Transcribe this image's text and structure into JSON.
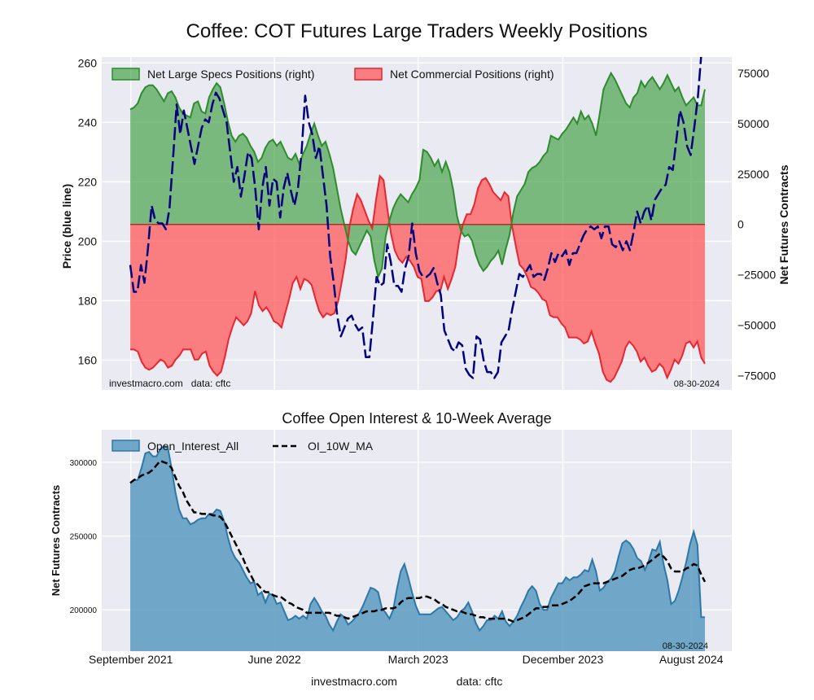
{
  "title": "Coffee: COT Futures Large Traders Weekly Positions",
  "colors": {
    "panel_bg": "#eaeaf2",
    "grid": "#ffffff",
    "specs_fill": "#3e9e3e",
    "specs_line": "#2e8b2e",
    "comm_fill": "#ff5a5a",
    "comm_line": "#e8262f",
    "price_line": "#000080",
    "oi_fill": "#5a9ac0",
    "oi_line": "#2e78a8",
    "ma_line": "#000000"
  },
  "footer": {
    "site": "investmacro.com",
    "data": "data: cftc"
  },
  "chart_data": [
    {
      "type": "area",
      "title": "Coffee: COT Futures Large Traders Weekly Positions",
      "ylabel_left": "Price (blue line)",
      "ylabel_right": "Net Futures Contracts",
      "ylim_left": [
        150,
        262
      ],
      "ylim_right": [
        -82000,
        83000
      ],
      "yticks_left": [
        "160",
        "180",
        "200",
        "220",
        "240",
        "260"
      ],
      "yticks_right": [
        "75000",
        "50000",
        "25000",
        "0",
        "−25000",
        "−50000",
        "−75000"
      ],
      "ytick_values_right": [
        75000,
        50000,
        25000,
        0,
        -25000,
        -50000,
        -75000
      ],
      "ytick_values_left": [
        160,
        180,
        200,
        220,
        240,
        260
      ],
      "x_start": "2021-08-31",
      "x_end": "2024-08-27",
      "legend_placement": "top-left",
      "grid": true,
      "watermark": "investmacro.com   data: cftc",
      "date_stamp": "08-30-2024",
      "series": [
        {
          "name": "Net Large Specs Positions (right)",
          "kind": "area",
          "values": [
            57000,
            58000,
            60000,
            65000,
            68000,
            69000,
            69000,
            67000,
            64000,
            61000,
            65000,
            66000,
            63000,
            58000,
            55000,
            54000,
            53000,
            60000,
            61000,
            56000,
            55000,
            63000,
            67000,
            70000,
            68000,
            60000,
            51000,
            44000,
            41000,
            44000,
            45000,
            43000,
            39000,
            36000,
            31000,
            33000,
            38000,
            41000,
            42000,
            39000,
            41000,
            37000,
            33000,
            32000,
            35000,
            30000,
            35000,
            39000,
            45000,
            50000,
            44000,
            39000,
            41000,
            35000,
            28000,
            18000,
            8000,
            0,
            -8000,
            -13000,
            -15000,
            -11000,
            -7000,
            -3000,
            -6000,
            -18000,
            -26000,
            -22000,
            -6000,
            2000,
            8000,
            12000,
            15000,
            13000,
            11000,
            15000,
            18000,
            22000,
            37000,
            36000,
            33000,
            29000,
            32000,
            26000,
            31000,
            26000,
            17000,
            4000,
            -3000,
            -6000,
            -5000,
            -8000,
            -15000,
            -20000,
            -23000,
            -21000,
            -18000,
            -16000,
            -13000,
            -20000,
            -12000,
            -5000,
            6000,
            14000,
            17000,
            20000,
            26000,
            28000,
            29000,
            31000,
            34000,
            36000,
            44000,
            43000,
            42000,
            45000,
            47000,
            50000,
            53000,
            50000,
            56000,
            52000,
            54000,
            50000,
            44000,
            55000,
            67000,
            71000,
            75000,
            72000,
            68000,
            64000,
            60000,
            58000,
            63000,
            65000,
            71000,
            68000,
            71000,
            73000,
            70000,
            67000,
            70000,
            74000,
            70000,
            66000,
            68000,
            63000,
            59000,
            61000,
            63000,
            59000,
            59000,
            67000
          ]
        },
        {
          "name": "Net Commercial Positions (right)",
          "kind": "area",
          "values": [
            -62000,
            -62000,
            -63000,
            -68000,
            -71000,
            -72000,
            -71000,
            -69000,
            -67000,
            -68000,
            -71000,
            -70000,
            -67000,
            -65000,
            -62000,
            -62000,
            -62000,
            -67000,
            -67000,
            -64000,
            -63000,
            -70000,
            -73000,
            -75000,
            -73000,
            -66000,
            -57000,
            -51000,
            -46000,
            -48000,
            -50000,
            -48000,
            -44000,
            -33000,
            -40000,
            -43000,
            -41000,
            -44000,
            -48000,
            -49000,
            -51000,
            -44000,
            -37000,
            -29000,
            -26000,
            -32000,
            -27000,
            -28000,
            -30000,
            -37000,
            -43000,
            -46000,
            -44000,
            -45000,
            -44000,
            -38000,
            -28000,
            -17000,
            -1000,
            8000,
            15000,
            12000,
            7000,
            2000,
            -2000,
            12000,
            24000,
            22000,
            8000,
            -5000,
            -13000,
            -17000,
            -19000,
            -16000,
            -18000,
            -21000,
            -26000,
            -27000,
            -38000,
            -38000,
            -36000,
            -33000,
            -33000,
            -26000,
            -32000,
            -27000,
            -21000,
            -8000,
            0,
            5000,
            5000,
            10000,
            18000,
            22000,
            23000,
            20000,
            16000,
            14000,
            12000,
            16000,
            14000,
            -1000,
            -11000,
            -20000,
            -22000,
            -26000,
            -31000,
            -32000,
            -34000,
            -37000,
            -38000,
            -45000,
            -46000,
            -46000,
            -49000,
            -51000,
            -56000,
            -56000,
            -56000,
            -57000,
            -59000,
            -58000,
            -53000,
            -59000,
            -64000,
            -73000,
            -77000,
            -78000,
            -76000,
            -72000,
            -68000,
            -61000,
            -58000,
            -60000,
            -63000,
            -68000,
            -66000,
            -70000,
            -73000,
            -72000,
            -69000,
            -71000,
            -76000,
            -72000,
            -67000,
            -69000,
            -65000,
            -59000,
            -58000,
            -61000,
            -58000,
            -66000,
            -69000
          ]
        },
        {
          "name": "Price (blue line)",
          "kind": "line",
          "axis": "left",
          "values": [
            192,
            183,
            183,
            192,
            186,
            198,
            212,
            207,
            206,
            206,
            204,
            211,
            228,
            246,
            236,
            244,
            238,
            232,
            226,
            232,
            238,
            241,
            240,
            246,
            250,
            248,
            244,
            240,
            230,
            220,
            225,
            215,
            222,
            230,
            228,
            218,
            204,
            218,
            225,
            212,
            221,
            220,
            208,
            218,
            223,
            217,
            212,
            218,
            230,
            249,
            240,
            236,
            228,
            232,
            222,
            212,
            195,
            186,
            175,
            168,
            171,
            174,
            175,
            172,
            170,
            171,
            161,
            161,
            174,
            188,
            185,
            186,
            199,
            193,
            185,
            185,
            183,
            191,
            195,
            206,
            196,
            190,
            188,
            188,
            189,
            191,
            186,
            182,
            170,
            167,
            164,
            163,
            166,
            165,
            157,
            155,
            154,
            168,
            167,
            160,
            156,
            156,
            154,
            156,
            166,
            168,
            170,
            177,
            183,
            189,
            188,
            190,
            192,
            188,
            189,
            189,
            187,
            191,
            196,
            193,
            196,
            195,
            197,
            192,
            196,
            196,
            199,
            202,
            204,
            205,
            204,
            205,
            201,
            205,
            205,
            199,
            198,
            200,
            197,
            200,
            197,
            203,
            210,
            206,
            210,
            212,
            207,
            214,
            216,
            218,
            219,
            225,
            224,
            234,
            244,
            240,
            232,
            229,
            238,
            248,
            263,
            263
          ]
        }
      ]
    },
    {
      "type": "area",
      "title": "Coffee Open Interest & 10-Week Average",
      "ylabel": "Net Futures Contracts",
      "ylim": [
        172000,
        322000
      ],
      "yticks": [
        "300000",
        "250000",
        "200000"
      ],
      "ytick_values": [
        300000,
        250000,
        200000
      ],
      "xticks": [
        "September 2021",
        "June 2022",
        "March 2023",
        "December 2023",
        "August 2024"
      ],
      "xtick_dates": [
        "2021-09-01",
        "2022-06-01",
        "2023-03-01",
        "2023-12-01",
        "2024-08-01"
      ],
      "x_start": "2021-08-31",
      "x_end": "2024-08-27",
      "legend_placement": "top-left",
      "grid": true,
      "date_stamp": "08-30-2024",
      "series": [
        {
          "name": "Open_Interest_All",
          "kind": "area",
          "values": [
            286000,
            288000,
            288000,
            296000,
            306000,
            307000,
            304000,
            304000,
            309000,
            311000,
            310000,
            296000,
            280000,
            268000,
            262000,
            262000,
            258000,
            259000,
            261000,
            262000,
            262000,
            265000,
            265000,
            268000,
            267000,
            260000,
            249000,
            240000,
            235000,
            232000,
            227000,
            222000,
            218000,
            219000,
            210000,
            212000,
            205000,
            211000,
            210000,
            204000,
            205000,
            199000,
            193000,
            194000,
            196000,
            194000,
            196000,
            194000,
            204000,
            208000,
            204000,
            199000,
            196000,
            190000,
            186000,
            192000,
            197000,
            195000,
            190000,
            192000,
            195000,
            198000,
            203000,
            209000,
            215000,
            214000,
            212000,
            201000,
            198000,
            194000,
            200000,
            214000,
            226000,
            231000,
            222000,
            212000,
            203000,
            197000,
            197000,
            197000,
            197000,
            199000,
            201000,
            202000,
            199000,
            196000,
            193000,
            195000,
            199000,
            201000,
            205000,
            199000,
            191000,
            186000,
            189000,
            193000,
            193000,
            196000,
            194000,
            199000,
            192000,
            189000,
            192000,
            196000,
            202000,
            207000,
            213000,
            216000,
            213000,
            204000,
            200000,
            200000,
            208000,
            213000,
            218000,
            218000,
            222000,
            220000,
            222000,
            222000,
            224000,
            227000,
            226000,
            234000,
            226000,
            213000,
            215000,
            219000,
            221000,
            226000,
            236000,
            245000,
            247000,
            245000,
            241000,
            235000,
            233000,
            227000,
            233000,
            241000,
            240000,
            246000,
            231000,
            220000,
            204000,
            206000,
            213000,
            222000,
            232000,
            244000,
            253000,
            244000,
            195000,
            195000
          ]
        },
        {
          "name": "OI_10W_MA",
          "kind": "line",
          "values": [
            286000,
            288000,
            289000,
            291000,
            292000,
            293000,
            295000,
            298000,
            301000,
            300000,
            299000,
            296000,
            290000,
            284000,
            280000,
            274000,
            270000,
            266000,
            266000,
            265000,
            265000,
            265000,
            264000,
            264000,
            263000,
            260000,
            255000,
            250000,
            245000,
            240000,
            235000,
            229000,
            224000,
            219000,
            217000,
            214000,
            212000,
            212000,
            210000,
            209000,
            209000,
            207000,
            205000,
            204000,
            202000,
            201000,
            200000,
            198000,
            198000,
            198000,
            198000,
            198000,
            198000,
            198000,
            197000,
            196000,
            196000,
            195000,
            194000,
            195000,
            196000,
            197000,
            198000,
            199000,
            199000,
            199000,
            200000,
            200000,
            201000,
            201000,
            201000,
            202000,
            205000,
            207000,
            208000,
            208000,
            208000,
            208000,
            209000,
            209000,
            208000,
            207000,
            205000,
            204000,
            202000,
            201000,
            200000,
            199000,
            199000,
            198000,
            197000,
            197000,
            196000,
            195000,
            195000,
            194000,
            194000,
            194000,
            194000,
            194000,
            194000,
            193000,
            192000,
            193000,
            194000,
            195000,
            197000,
            199000,
            201000,
            201000,
            202000,
            202000,
            203000,
            203000,
            203000,
            204000,
            205000,
            206000,
            208000,
            210000,
            213000,
            216000,
            217000,
            218000,
            218000,
            218000,
            218000,
            219000,
            220000,
            221000,
            222000,
            223000,
            225000,
            227000,
            228000,
            228000,
            229000,
            230000,
            232000,
            234000,
            236000,
            238000,
            236000,
            233000,
            228000,
            226000,
            226000,
            226000,
            228000,
            229000,
            231000,
            230000,
            224000,
            219000
          ]
        }
      ]
    }
  ]
}
